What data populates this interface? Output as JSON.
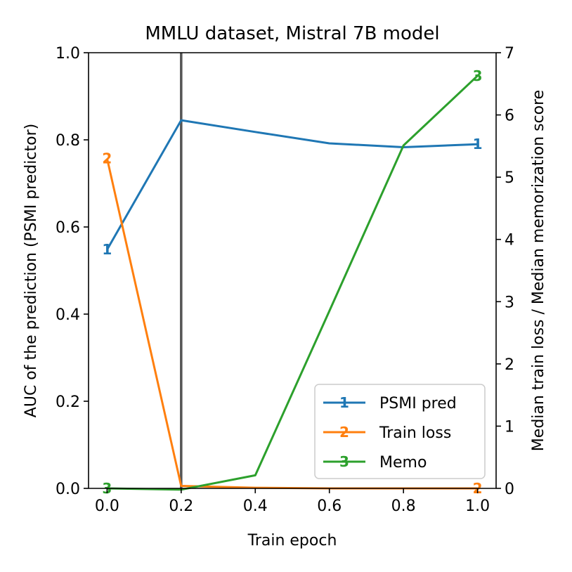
{
  "chart_data": {
    "type": "line",
    "title": "MMLU dataset, Mistral 7B model",
    "xlabel": "Train epoch",
    "ylabel_left": "AUC of the prediction (PSMI predictor)",
    "ylabel_right": "Median train loss / Median memorization score",
    "xlim": [
      -0.05,
      1.05
    ],
    "ylim_left": [
      0,
      1
    ],
    "ylim_right": [
      0,
      7
    ],
    "x_ticks": [
      "0.0",
      "0.2",
      "0.4",
      "0.6",
      "0.8",
      "1.0"
    ],
    "x_tick_values": [
      0.0,
      0.2,
      0.4,
      0.6,
      0.8,
      1.0
    ],
    "y_left_ticks": [
      "0.0",
      "0.2",
      "0.4",
      "0.6",
      "0.8",
      "1.0"
    ],
    "y_left_tick_values": [
      0.0,
      0.2,
      0.4,
      0.6,
      0.8,
      1.0
    ],
    "y_right_ticks": [
      "0",
      "1",
      "2",
      "3",
      "4",
      "5",
      "6",
      "7"
    ],
    "y_right_tick_values": [
      0,
      1,
      2,
      3,
      4,
      5,
      6,
      7
    ],
    "vertical_line_x": 0.2,
    "legend_position": "lower-right",
    "series": [
      {
        "name": "PSMI pred",
        "axis": "left",
        "color": "#1f77b4",
        "marker": "1",
        "x": [
          0.0,
          0.2,
          0.4,
          0.6,
          0.8,
          1.0
        ],
        "values": [
          0.548,
          0.845,
          0.818,
          0.792,
          0.783,
          0.79
        ]
      },
      {
        "name": "Train loss",
        "axis": "right",
        "color": "#ff7f0e",
        "marker": "2",
        "x": [
          0.0,
          0.2,
          0.4,
          0.6,
          0.8,
          1.0
        ],
        "values": [
          5.3,
          0.04,
          0.01,
          0.0,
          0.0,
          0.0
        ]
      },
      {
        "name": "Memo",
        "axis": "right",
        "color": "#2ca02c",
        "marker": "3",
        "x": [
          0.0,
          0.2,
          0.4,
          0.6,
          0.8,
          1.0
        ],
        "values": [
          0.0,
          -0.02,
          0.21,
          2.85,
          5.51,
          6.63
        ]
      }
    ]
  }
}
